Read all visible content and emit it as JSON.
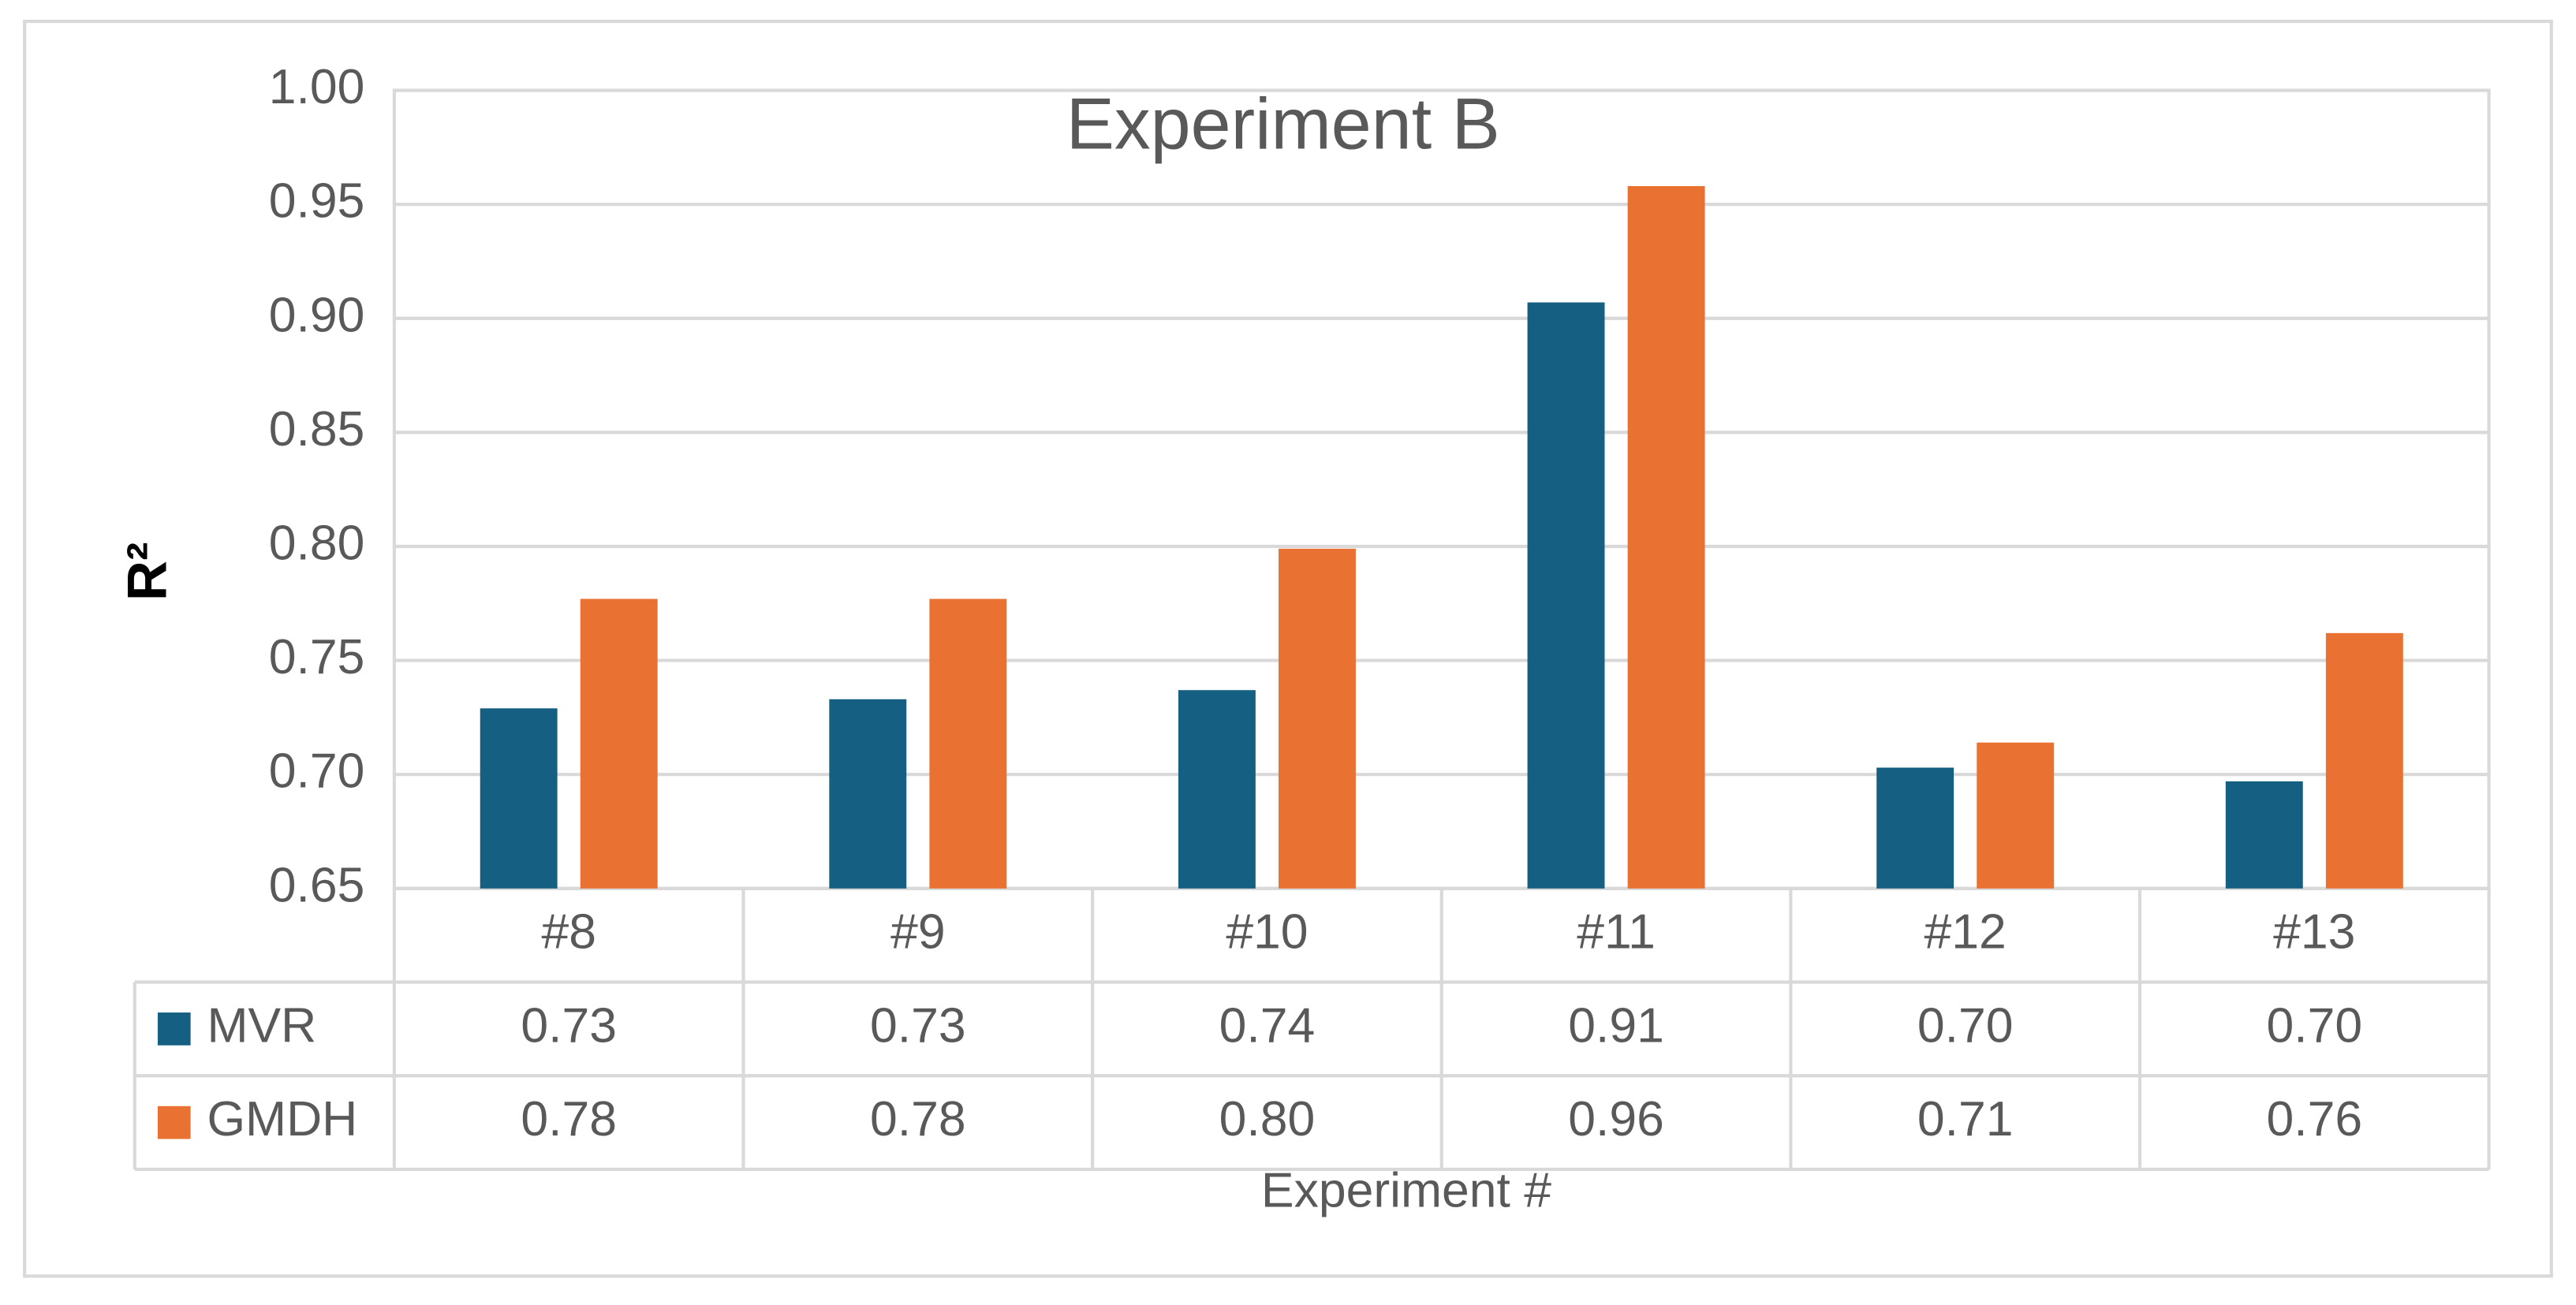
{
  "chart_data": {
    "type": "bar",
    "title": "Experiment B",
    "y_label": "R²",
    "x_label": "Experiment #",
    "categories": [
      "#8",
      "#9",
      "#10",
      "#11",
      "#12",
      "#13"
    ],
    "series": [
      {
        "name": "MVR",
        "color": "#156082",
        "values": [
          0.729,
          0.733,
          0.737,
          0.907,
          0.703,
          0.697
        ],
        "value_labels": [
          "0.73",
          "0.73",
          "0.74",
          "0.91",
          "0.70",
          "0.70"
        ]
      },
      {
        "name": "GMDH",
        "color": "#e97132",
        "values": [
          0.777,
          0.777,
          0.799,
          0.958,
          0.714,
          0.762
        ],
        "value_labels": [
          "0.78",
          "0.78",
          "0.80",
          "0.96",
          "0.71",
          "0.76"
        ]
      }
    ],
    "ylim": [
      0.65,
      1
    ],
    "yticks": [
      0.65,
      {
        "value": 0.7,
        "label": "0.70"
      },
      0.75,
      {
        "value": 0.8,
        "label": "0.80"
      },
      0.85,
      {
        "value": 0.9,
        "label": "0.90"
      },
      0.95,
      {
        "value": 1,
        "label": "1.00"
      }
    ],
    "grid": true
  }
}
